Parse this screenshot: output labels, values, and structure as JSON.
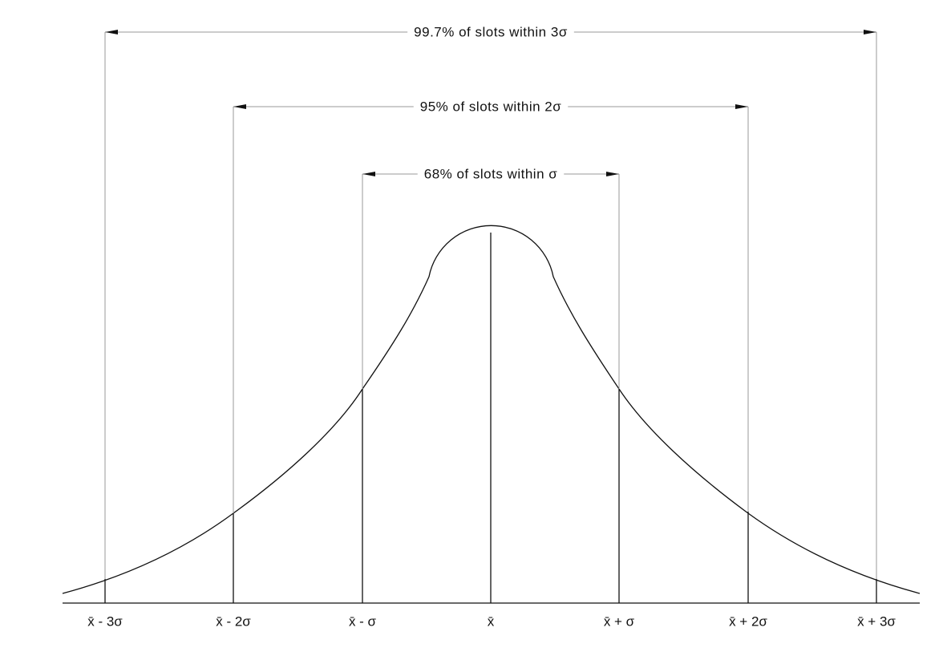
{
  "ranges": [
    "99.7% of slots within 3σ",
    "95% of slots within 2σ",
    "68% of slots within σ"
  ],
  "axis_labels": [
    "x̄ - 3σ",
    "x̄ - 2σ",
    "x̄ - σ",
    "x̄",
    "x̄ + σ",
    "x̄ + 2σ",
    "x̄ + 3σ"
  ]
}
